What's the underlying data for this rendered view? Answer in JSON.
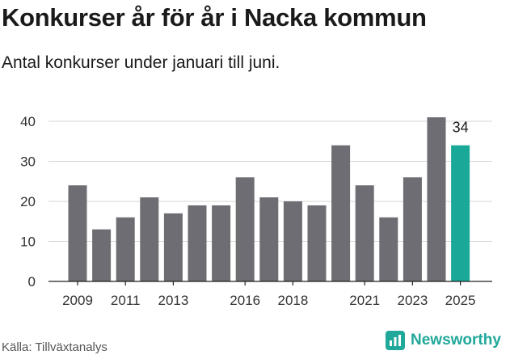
{
  "title": "Konkurser år för år i Nacka kommun",
  "subtitle": "Antal konkurser under januari till juni.",
  "source": "Källa: Tillväxtanalys",
  "brand": {
    "name": "Newsworthy",
    "color": "#20a89a"
  },
  "chart_data": {
    "type": "bar",
    "categories": [
      "2009",
      "2010",
      "2011",
      "2012",
      "2013",
      "2014",
      "2015",
      "2016",
      "2017",
      "2018",
      "2019",
      "2020",
      "2021",
      "2022",
      "2023",
      "2024",
      "2025"
    ],
    "x_tick_labels": [
      "2009",
      "2011",
      "2013",
      "2016",
      "2018",
      "2021",
      "2023",
      "2025"
    ],
    "values": [
      24,
      13,
      16,
      21,
      17,
      19,
      19,
      26,
      21,
      20,
      19,
      34,
      24,
      16,
      26,
      41,
      34
    ],
    "ylim": [
      0,
      43
    ],
    "yticks": [
      0,
      10,
      20,
      30,
      40
    ],
    "grid": true,
    "colors": {
      "default": "#6e6d73",
      "highlight": "#1aa898"
    },
    "highlight_index": 16,
    "data_labels": [
      {
        "category": "2025",
        "text": "34"
      }
    ],
    "xlabel": "",
    "ylabel": ""
  }
}
